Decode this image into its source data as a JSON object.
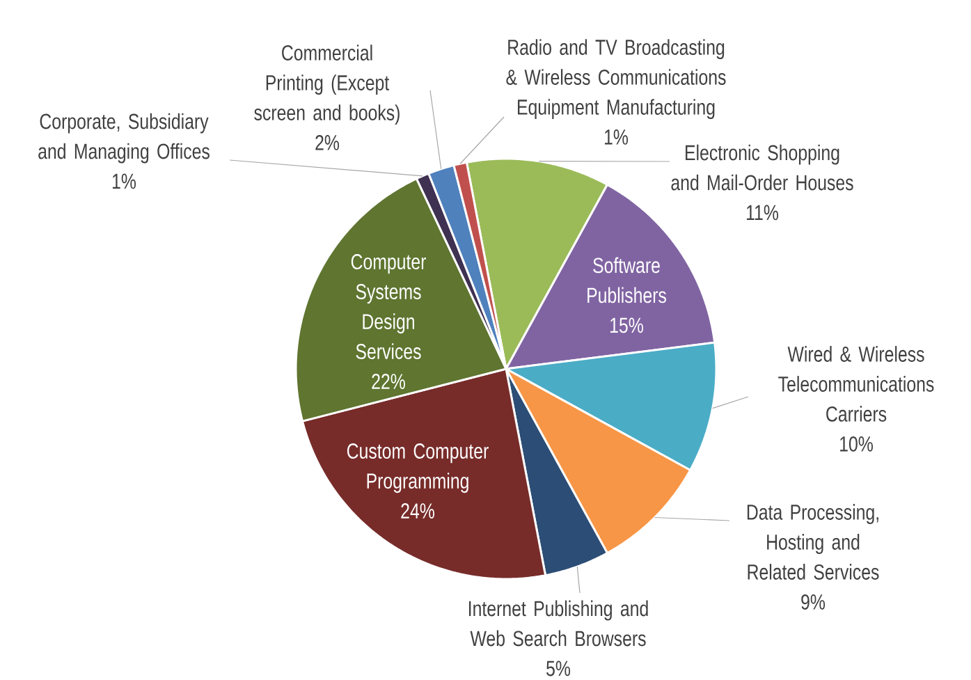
{
  "chart_data": {
    "type": "pie",
    "categories": [
      "Electronic Shopping and Mail-Order Houses",
      "Software Publishers",
      "Wired & Wireless Telecommunications Carriers",
      "Data Processing, Hosting and Related Services",
      "Internet Publishing and Web Search Browsers",
      "Custom Computer Programming",
      "Computer Systems Design Services",
      "Corporate, Subsidiary and Managing Offices",
      "Commercial Printing (Except screen and books)",
      "Radio and TV Broadcasting & Wireless Communications Equipment Manufacturing"
    ],
    "values": [
      11,
      15,
      10,
      9,
      5,
      24,
      22,
      1,
      2,
      1
    ],
    "value_labels": [
      "11%",
      "15%",
      "10%",
      "9%",
      "5%",
      "24%",
      "22%",
      "1%",
      "2%",
      "1%"
    ],
    "colors": [
      "#9bbb59",
      "#8064a2",
      "#4bacc6",
      "#f79646",
      "#2c4d75",
      "#772c2a",
      "#5f7530",
      "#3f3151",
      "#4f81bd",
      "#c0504d"
    ]
  }
}
